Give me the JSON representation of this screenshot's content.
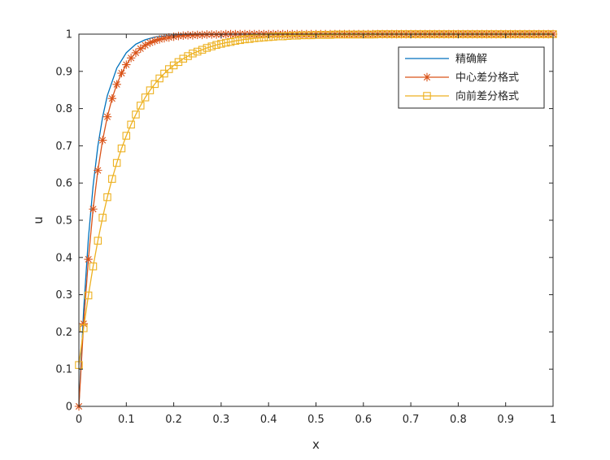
{
  "chart_data": {
    "type": "line",
    "xlabel": "x",
    "ylabel": "u",
    "xlim": [
      0,
      1
    ],
    "ylim": [
      0,
      1
    ],
    "xticks": [
      "0",
      "0.1",
      "0.2",
      "0.3",
      "0.4",
      "0.5",
      "0.6",
      "0.7",
      "0.8",
      "0.9",
      "1"
    ],
    "yticks": [
      "0",
      "0.1",
      "0.2",
      "0.3",
      "0.4",
      "0.5",
      "0.6",
      "0.7",
      "0.8",
      "0.9",
      "1"
    ],
    "grid": false,
    "legend_position": "top-right",
    "series": [
      {
        "name": "精确解",
        "color": "#0072BD",
        "marker": "none",
        "x": [
          0,
          0.01,
          0.02,
          0.03,
          0.04,
          0.05,
          0.06,
          0.08,
          0.1,
          0.12,
          0.14,
          0.16,
          0.18,
          0.2,
          0.25,
          0.3,
          0.4,
          0.5,
          0.6,
          0.7,
          0.8,
          0.9,
          1.0
        ],
        "y": [
          0,
          0.258,
          0.451,
          0.593,
          0.699,
          0.777,
          0.835,
          0.909,
          0.95,
          0.973,
          0.985,
          0.992,
          0.995,
          0.997,
          0.999,
          1.0,
          1.0,
          1.0,
          1.0,
          1.0,
          1.0,
          1.0,
          1.0
        ]
      },
      {
        "name": "中心差分格式",
        "color": "#D95319",
        "marker": "asterisk",
        "x": [
          0,
          0.01,
          0.02,
          0.03,
          0.04,
          0.05,
          0.06,
          0.07,
          0.08,
          0.09,
          0.1,
          0.11,
          0.12,
          0.13,
          0.14,
          0.15,
          0.16,
          0.17,
          0.18,
          0.19,
          0.2,
          0.21,
          0.22,
          0.23,
          0.24,
          0.25,
          0.26,
          0.27,
          0.28,
          0.29,
          0.3,
          0.31,
          0.32,
          0.33,
          0.34,
          0.35,
          0.36,
          0.37,
          0.38,
          0.39,
          0.4,
          0.41,
          0.42,
          0.43,
          0.44,
          0.45,
          0.46,
          0.47,
          0.48,
          0.49,
          0.5,
          0.51,
          0.52,
          0.53,
          0.54,
          0.55,
          0.56,
          0.57,
          0.58,
          0.59,
          0.6,
          0.61,
          0.62,
          0.63,
          0.64,
          0.65,
          0.66,
          0.67,
          0.68,
          0.69,
          0.7,
          0.71,
          0.72,
          0.73,
          0.74,
          0.75,
          0.76,
          0.77,
          0.78,
          0.79,
          0.8,
          0.81,
          0.82,
          0.83,
          0.84,
          0.85,
          0.86,
          0.87,
          0.88,
          0.89,
          0.9,
          0.91,
          0.92,
          0.93,
          0.94,
          0.95,
          0.96,
          0.97,
          0.98,
          0.99,
          1.0
        ],
        "y": [
          0,
          0.222,
          0.395,
          0.53,
          0.634,
          0.715,
          0.778,
          0.827,
          0.865,
          0.895,
          0.918,
          0.936,
          0.95,
          0.961,
          0.97,
          0.977,
          0.982,
          0.986,
          0.989,
          0.991,
          0.993,
          0.995,
          0.996,
          0.997,
          0.997,
          0.998,
          0.998,
          0.999,
          0.999,
          0.999,
          0.999,
          1.0,
          1.0,
          1.0,
          1.0,
          1.0,
          1.0,
          1.0,
          1.0,
          1.0,
          1.0,
          1.0,
          1.0,
          1.0,
          1.0,
          1.0,
          1.0,
          1.0,
          1.0,
          1.0,
          1.0,
          1.0,
          1.0,
          1.0,
          1.0,
          1.0,
          1.0,
          1.0,
          1.0,
          1.0,
          1.0,
          1.0,
          1.0,
          1.0,
          1.0,
          1.0,
          1.0,
          1.0,
          1.0,
          1.0,
          1.0,
          1.0,
          1.0,
          1.0,
          1.0,
          1.0,
          1.0,
          1.0,
          1.0,
          1.0,
          1.0,
          1.0,
          1.0,
          1.0,
          1.0,
          1.0,
          1.0,
          1.0,
          1.0,
          1.0,
          1.0,
          1.0,
          1.0,
          1.0,
          1.0,
          1.0,
          1.0,
          1.0,
          1.0,
          1.0,
          1.0
        ]
      },
      {
        "name": "向前差分格式",
        "color": "#EDB120",
        "marker": "square",
        "x": [
          0,
          0.01,
          0.02,
          0.03,
          0.04,
          0.05,
          0.06,
          0.07,
          0.08,
          0.09,
          0.1,
          0.11,
          0.12,
          0.13,
          0.14,
          0.15,
          0.16,
          0.17,
          0.18,
          0.19,
          0.2,
          0.21,
          0.22,
          0.23,
          0.24,
          0.25,
          0.26,
          0.27,
          0.28,
          0.29,
          0.3,
          0.31,
          0.32,
          0.33,
          0.34,
          0.35,
          0.36,
          0.37,
          0.38,
          0.39,
          0.4,
          0.41,
          0.42,
          0.43,
          0.44,
          0.45,
          0.46,
          0.47,
          0.48,
          0.49,
          0.5,
          0.51,
          0.52,
          0.53,
          0.54,
          0.55,
          0.56,
          0.57,
          0.58,
          0.59,
          0.6,
          0.61,
          0.62,
          0.63,
          0.64,
          0.65,
          0.66,
          0.67,
          0.68,
          0.69,
          0.7,
          0.71,
          0.72,
          0.73,
          0.74,
          0.75,
          0.76,
          0.77,
          0.78,
          0.79,
          0.8,
          0.81,
          0.82,
          0.83,
          0.84,
          0.85,
          0.86,
          0.87,
          0.88,
          0.89,
          0.9,
          0.91,
          0.92,
          0.93,
          0.94,
          0.95,
          0.96,
          0.97,
          0.98,
          0.99,
          1.0
        ],
        "y": [
          0.111,
          0.21,
          0.298,
          0.376,
          0.445,
          0.507,
          0.562,
          0.611,
          0.654,
          0.693,
          0.727,
          0.757,
          0.784,
          0.808,
          0.83,
          0.849,
          0.866,
          0.881,
          0.894,
          0.906,
          0.916,
          0.925,
          0.934,
          0.941,
          0.948,
          0.953,
          0.958,
          0.963,
          0.967,
          0.971,
          0.974,
          0.977,
          0.979,
          0.982,
          0.984,
          0.986,
          0.987,
          0.989,
          0.99,
          0.991,
          0.992,
          0.993,
          0.994,
          0.994,
          0.995,
          0.996,
          0.996,
          0.997,
          0.997,
          0.997,
          0.998,
          0.998,
          0.998,
          0.998,
          0.999,
          0.999,
          0.999,
          0.999,
          0.999,
          0.999,
          0.999,
          0.999,
          0.999,
          1.0,
          1.0,
          1.0,
          1.0,
          1.0,
          1.0,
          1.0,
          1.0,
          1.0,
          1.0,
          1.0,
          1.0,
          1.0,
          1.0,
          1.0,
          1.0,
          1.0,
          1.0,
          1.0,
          1.0,
          1.0,
          1.0,
          1.0,
          1.0,
          1.0,
          1.0,
          1.0,
          1.0,
          1.0,
          1.0,
          1.0,
          1.0,
          1.0,
          1.0,
          1.0,
          1.0,
          1.0,
          1.0
        ]
      }
    ]
  }
}
